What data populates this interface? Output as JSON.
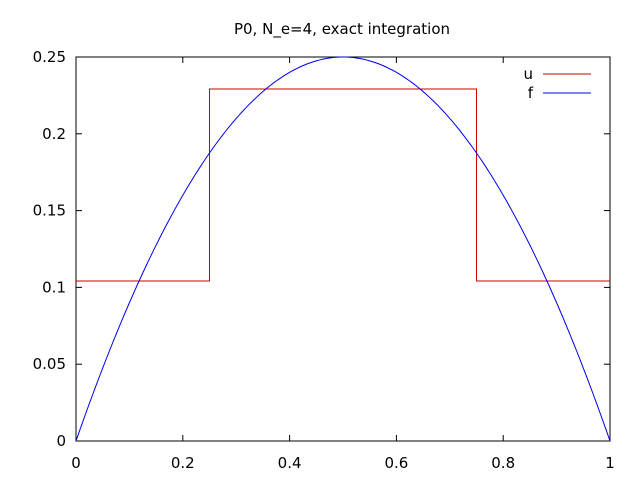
{
  "chart_data": {
    "type": "line",
    "title": "P0, N_e=4, exact integration",
    "xlabel": "",
    "ylabel": "",
    "xlim": [
      0,
      1
    ],
    "ylim": [
      0,
      0.25
    ],
    "x_ticks": [
      "0",
      "0.2",
      "0.4",
      "0.6",
      "0.8",
      "1"
    ],
    "y_ticks": [
      "0",
      "0.05",
      "0.1",
      "0.15",
      "0.2",
      "0.25"
    ],
    "grid": false,
    "legend_position": "top-right",
    "series": [
      {
        "name": "u",
        "color": "#cc0000",
        "style": "step",
        "x": [
          0,
          0.25,
          0.25,
          0.75,
          0.75,
          1
        ],
        "y": [
          0.1042,
          0.1042,
          0.2292,
          0.2292,
          0.1042,
          0.1042
        ]
      },
      {
        "name": "f",
        "color": "#0000ee",
        "style": "curve",
        "x": [
          0,
          0.05,
          0.1,
          0.15,
          0.2,
          0.25,
          0.3,
          0.35,
          0.4,
          0.45,
          0.5,
          0.55,
          0.6,
          0.65,
          0.7,
          0.75,
          0.8,
          0.85,
          0.9,
          0.95,
          1
        ],
        "y": [
          0,
          0.0475,
          0.09,
          0.1275,
          0.16,
          0.1875,
          0.21,
          0.2275,
          0.24,
          0.2475,
          0.25,
          0.2475,
          0.24,
          0.2275,
          0.21,
          0.1875,
          0.16,
          0.1275,
          0.09,
          0.0475,
          0
        ]
      }
    ]
  }
}
